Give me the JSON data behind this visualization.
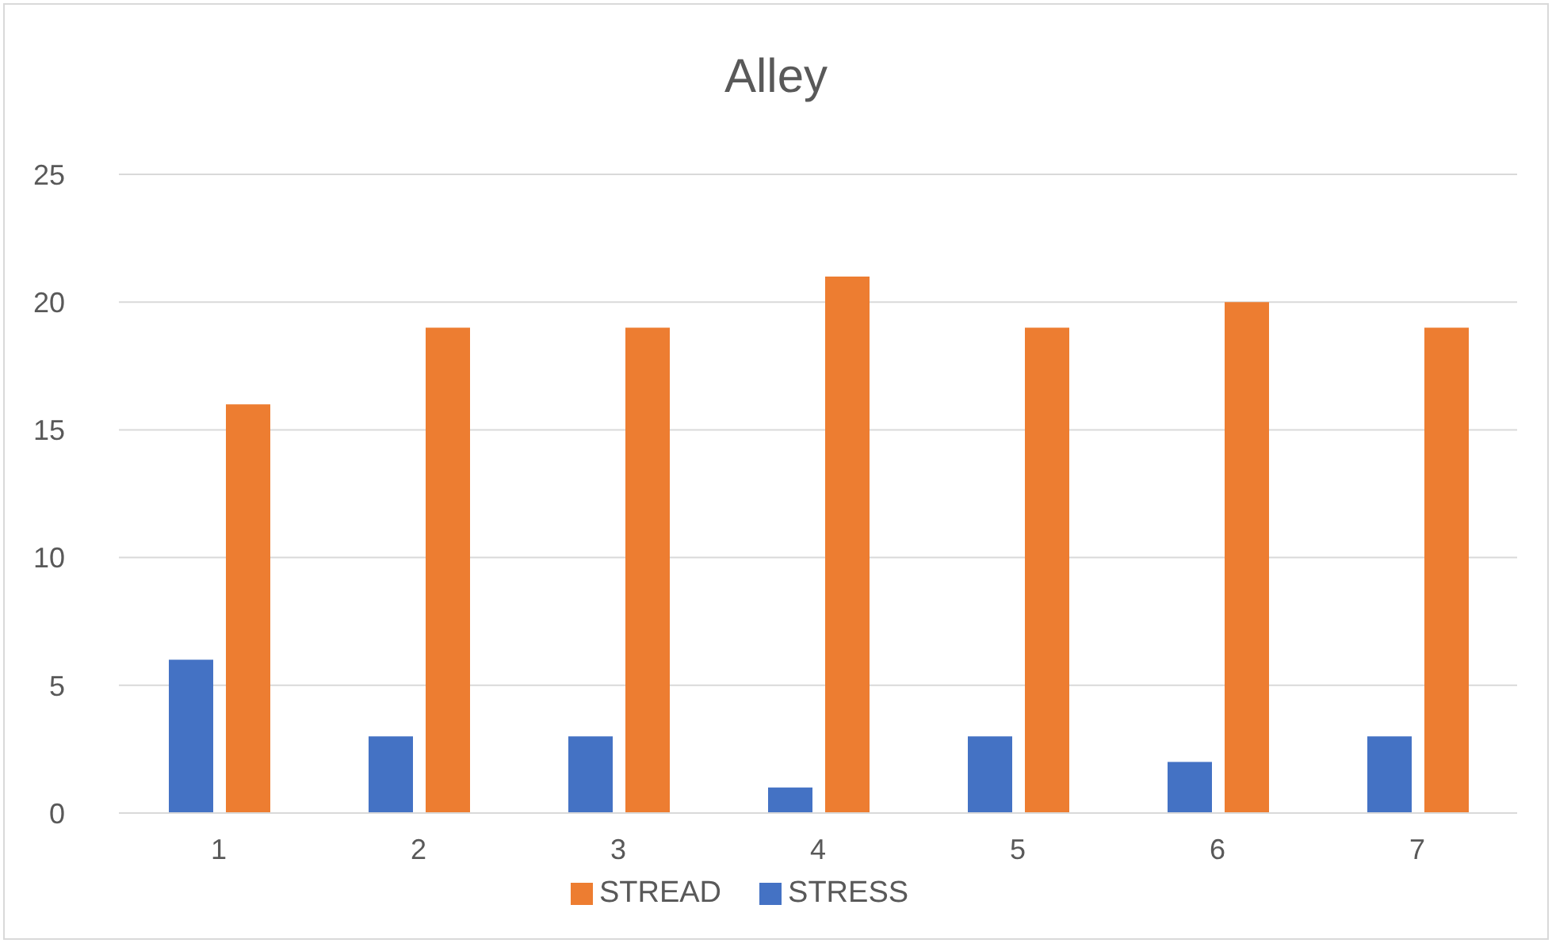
{
  "chart_data": {
    "type": "bar",
    "title": "Alley",
    "categories": [
      "1",
      "2",
      "3",
      "4",
      "5",
      "6",
      "7"
    ],
    "series": [
      {
        "name": "STRESS",
        "color": "#4472c4",
        "values": [
          6,
          3,
          3,
          1,
          3,
          2,
          3
        ]
      },
      {
        "name": "STREAD",
        "color": "#ed7d31",
        "values": [
          16,
          19,
          19,
          21,
          19,
          20,
          19
        ]
      }
    ],
    "ylim": [
      0,
      25
    ],
    "yticks": [
      0,
      5,
      10,
      15,
      20,
      25
    ],
    "grid": "y",
    "legend": "bottom"
  }
}
